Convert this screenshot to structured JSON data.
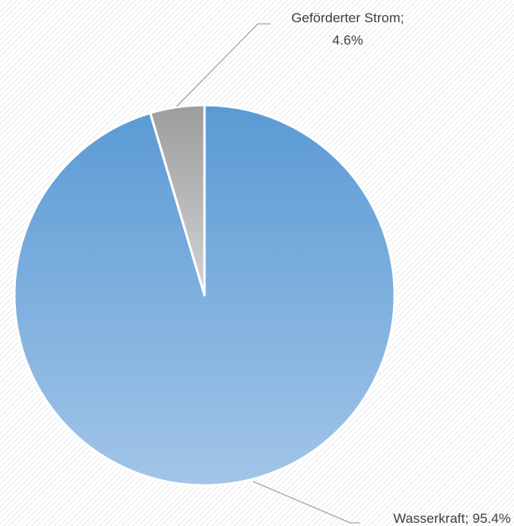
{
  "chart_data": {
    "type": "pie",
    "title": "",
    "slices": [
      {
        "label": "Wasserkraft",
        "value": 95.4,
        "display": "95.4%",
        "color": "#5b9bd5"
      },
      {
        "label": "Geförderter Strom",
        "value": 4.6,
        "display": "4.6%",
        "color": "#a5a5a5"
      }
    ],
    "start_angle": "12 o'clock",
    "direction": "clockwise",
    "legend": "none",
    "data_labels": "outside with leader lines"
  }
}
